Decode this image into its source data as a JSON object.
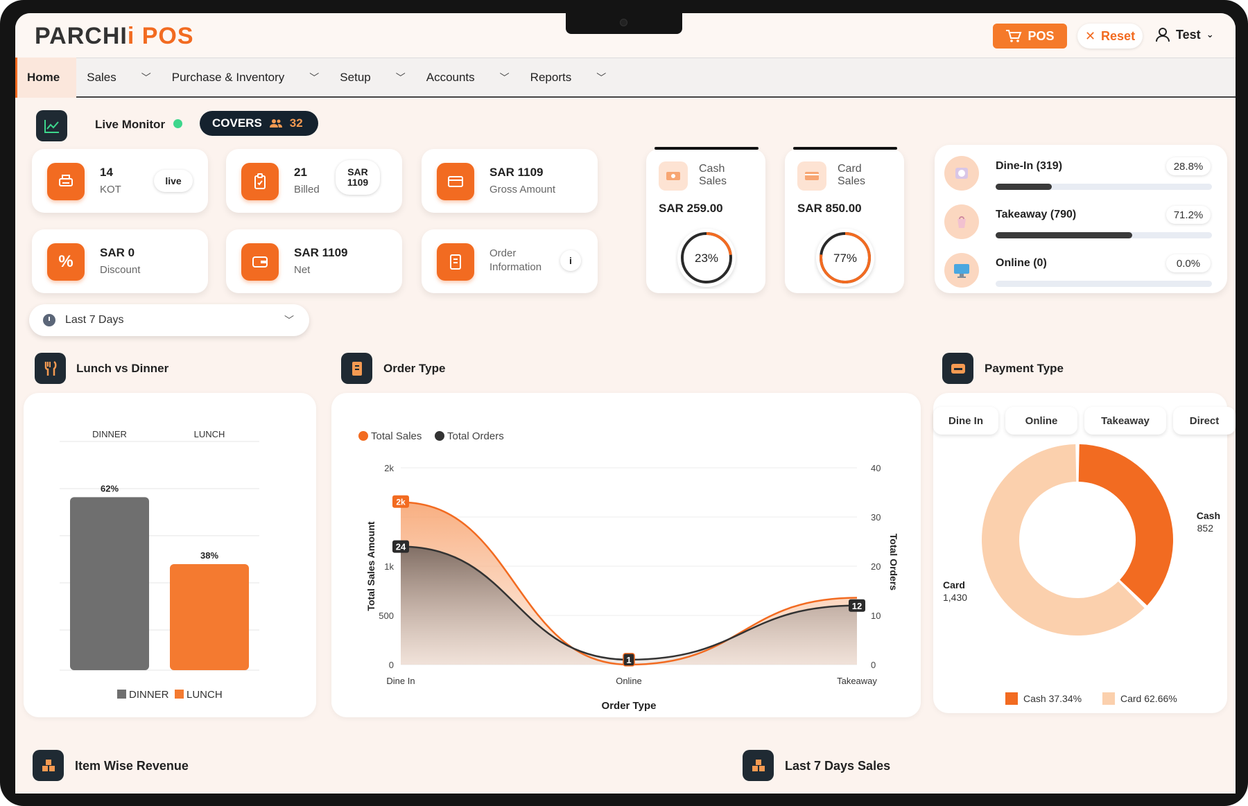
{
  "brand": {
    "name_part1": "PARCHI",
    "name_accent": "i",
    "name_part2": " POS"
  },
  "header": {
    "pos_label": "POS",
    "reset_label": "Reset",
    "user_name": "Test"
  },
  "nav": {
    "items": [
      {
        "label": "Home",
        "active": true,
        "has_menu": false
      },
      {
        "label": "Sales",
        "active": false,
        "has_menu": true
      },
      {
        "label": "Purchase & Inventory",
        "active": false,
        "has_menu": true
      },
      {
        "label": "Setup",
        "active": false,
        "has_menu": true
      },
      {
        "label": "Accounts",
        "active": false,
        "has_menu": true
      },
      {
        "label": "Reports",
        "active": false,
        "has_menu": true
      }
    ]
  },
  "live_monitor": {
    "label": "Live Monitor",
    "covers_label": "COVERS",
    "covers_count": "32"
  },
  "stats": {
    "kot": {
      "value": "14",
      "label": "KOT",
      "badge": "live"
    },
    "billed": {
      "value": "21",
      "label": "Billed",
      "badge_line1": "SAR",
      "badge_line2": "1109"
    },
    "gross": {
      "value": "SAR 1109",
      "label": "Gross Amount"
    },
    "discount": {
      "value": "SAR 0",
      "label": "Discount"
    },
    "net": {
      "value": "SAR 1109",
      "label": "Net"
    },
    "order_info": {
      "line1": "Order",
      "line2": "Information",
      "badge": "i"
    }
  },
  "sales_split": {
    "cash": {
      "label_line1": "Cash",
      "label_line2": "Sales",
      "amount": "SAR 259.00",
      "percent_text": "23%",
      "percent": 23
    },
    "card": {
      "label_line1": "Card",
      "label_line2": "Sales",
      "amount": "SAR 850.00",
      "percent_text": "77%",
      "percent": 77
    }
  },
  "order_types": [
    {
      "name": "Dine-In (319)",
      "percent_text": "28.8%",
      "fill": 0.26
    },
    {
      "name": "Takeaway (790)",
      "percent_text": "71.2%",
      "fill": 0.63
    },
    {
      "name": "Online (0)",
      "percent_text": "0.0%",
      "fill": 0
    }
  ],
  "date_range": {
    "selected": "Last 7 Days"
  },
  "sections": {
    "lunch_dinner": "Lunch vs Dinner",
    "order_type": "Order Type",
    "payment_type": "Payment Type",
    "item_revenue": "Item Wise Revenue",
    "last7": "Last 7 Days Sales"
  },
  "payment_tabs": [
    "Dine In",
    "Online",
    "Takeaway",
    "Direct"
  ],
  "chart_data": [
    {
      "type": "bar",
      "categories": [
        "DINNER",
        "LUNCH"
      ],
      "values": [
        62,
        38
      ],
      "data_labels": [
        "62%",
        "38%"
      ],
      "legend": [
        "DINNER",
        "LUNCH"
      ],
      "colors": [
        "#6f6f6f",
        "#f47a30"
      ],
      "ylim": [
        0,
        100
      ]
    },
    {
      "type": "area",
      "categories": [
        "Dine In",
        "Online",
        "Takeaway"
      ],
      "xlabel": "Order Type",
      "ylabel": "Total Sales Amount",
      "y2label": "Total Orders",
      "ylim": [
        0,
        2000
      ],
      "y2lim": [
        0,
        40
      ],
      "y_ticks": [
        "0",
        "500",
        "1k",
        "2k"
      ],
      "y2_ticks": [
        "0",
        "10",
        "20",
        "30",
        "40"
      ],
      "series": [
        {
          "name": "Total Sales",
          "values": [
            1650,
            0,
            680
          ],
          "data_labels": [
            "2k",
            "",
            ""
          ],
          "color": "#f26b21"
        },
        {
          "name": "Total Orders",
          "values": [
            24,
            1,
            12
          ],
          "data_labels": [
            "24",
            "1",
            "12"
          ],
          "color": "#333333"
        }
      ]
    },
    {
      "type": "pie",
      "donut": true,
      "labels": [
        "Cash",
        "Card"
      ],
      "values": [
        852,
        1430
      ],
      "value_labels": [
        "852",
        "1,430"
      ],
      "legend": [
        "Cash 37.34%",
        "Card 62.66%"
      ],
      "colors": [
        "#f26b21",
        "#fbd0ad"
      ]
    }
  ]
}
